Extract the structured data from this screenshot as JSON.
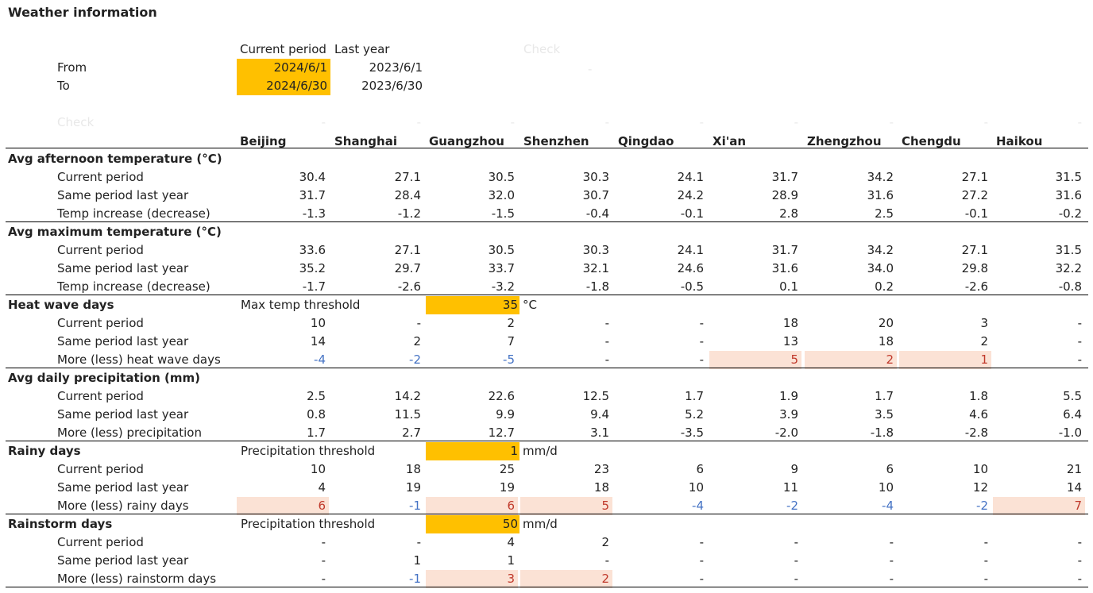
{
  "title": "Weather information",
  "period_header": {
    "current": "Current period",
    "last": "Last year",
    "check": "Check"
  },
  "from_label": "From",
  "to_label": "To",
  "from_current": "2024/6/1",
  "from_last": "2023/6/1",
  "to_current": "2024/6/30",
  "to_last": "2023/6/30",
  "dash": "-",
  "check_label": "Check",
  "cities": [
    "Beijing",
    "Shanghai",
    "Guangzhou",
    "Shenzhen",
    "Qingdao",
    "Xi'an",
    "Zhengzhou",
    "Chengdu",
    "Haikou"
  ],
  "sections": [
    {
      "title": "Avg afternoon temperature (°C)",
      "rows": [
        {
          "label": "Current period",
          "values": [
            "30.4",
            "27.1",
            "30.5",
            "30.3",
            "24.1",
            "31.7",
            "34.2",
            "27.1",
            "31.5"
          ]
        },
        {
          "label": "Same period last year",
          "values": [
            "31.7",
            "28.4",
            "32.0",
            "30.7",
            "24.2",
            "28.9",
            "31.6",
            "27.2",
            "31.6"
          ]
        },
        {
          "label": "Temp increase (decrease)",
          "values": [
            "-1.3",
            "-1.2",
            "-1.5",
            "-0.4",
            "-0.1",
            "2.8",
            "2.5",
            "-0.1",
            "-0.2"
          ]
        }
      ]
    },
    {
      "title": "Avg maximum temperature (°C)",
      "rows": [
        {
          "label": "Current period",
          "values": [
            "33.6",
            "27.1",
            "30.5",
            "30.3",
            "24.1",
            "31.7",
            "34.2",
            "27.1",
            "31.5"
          ]
        },
        {
          "label": "Same period last year",
          "values": [
            "35.2",
            "29.7",
            "33.7",
            "32.1",
            "24.6",
            "31.6",
            "34.0",
            "29.8",
            "32.2"
          ]
        },
        {
          "label": "Temp increase (decrease)",
          "values": [
            "-1.7",
            "-2.6",
            "-3.2",
            "-1.8",
            "-0.5",
            "0.1",
            "0.2",
            "-2.6",
            "-0.8"
          ]
        }
      ]
    },
    {
      "title": "Heat wave days",
      "threshold_label": "Max temp threshold",
      "threshold_value": "35",
      "threshold_unit": "°C",
      "rows": [
        {
          "label": "Current period",
          "values": [
            "10",
            "-",
            "2",
            "-",
            "-",
            "18",
            "20",
            "3",
            "-"
          ]
        },
        {
          "label": "Same period last year",
          "values": [
            "14",
            "2",
            "7",
            "-",
            "-",
            "13",
            "18",
            "2",
            "-"
          ]
        },
        {
          "label": "More (less) heat wave days",
          "values": [
            "-4",
            "-2",
            "-5",
            "-",
            "-",
            "5",
            "2",
            "1",
            "-"
          ]
        }
      ]
    },
    {
      "title": "Avg daily precipitation (mm)",
      "rows": [
        {
          "label": "Current period",
          "values": [
            "2.5",
            "14.2",
            "22.6",
            "12.5",
            "1.7",
            "1.9",
            "1.7",
            "1.8",
            "5.5"
          ]
        },
        {
          "label": "Same period last year",
          "values": [
            "0.8",
            "11.5",
            "9.9",
            "9.4",
            "5.2",
            "3.9",
            "3.5",
            "4.6",
            "6.4"
          ]
        },
        {
          "label": "More (less) precipitation",
          "values": [
            "1.7",
            "2.7",
            "12.7",
            "3.1",
            "-3.5",
            "-2.0",
            "-1.8",
            "-2.8",
            "-1.0"
          ]
        }
      ]
    },
    {
      "title": "Rainy days",
      "threshold_label": "Precipitation threshold",
      "threshold_value": "1",
      "threshold_unit": "mm/d",
      "rows": [
        {
          "label": "Current period",
          "values": [
            "10",
            "18",
            "25",
            "23",
            "6",
            "9",
            "6",
            "10",
            "21"
          ]
        },
        {
          "label": "Same period last year",
          "values": [
            "4",
            "19",
            "19",
            "18",
            "10",
            "11",
            "10",
            "12",
            "14"
          ]
        },
        {
          "label": "More (less) rainy days",
          "values": [
            "6",
            "-1",
            "6",
            "5",
            "-4",
            "-2",
            "-4",
            "-2",
            "7"
          ]
        }
      ]
    },
    {
      "title": "Rainstorm days",
      "threshold_label": "Precipitation threshold",
      "threshold_value": "50",
      "threshold_unit": "mm/d",
      "rows": [
        {
          "label": "Current period",
          "values": [
            "-",
            "-",
            "4",
            "2",
            "-",
            "-",
            "-",
            "-",
            "-"
          ]
        },
        {
          "label": "Same period last year",
          "values": [
            "-",
            "1",
            "1",
            "-",
            "-",
            "-",
            "-",
            "-",
            "-"
          ]
        },
        {
          "label": "More (less) rainstorm days",
          "values": [
            "-",
            "-1",
            "3",
            "2",
            "-",
            "-",
            "-",
            "-",
            "-"
          ]
        }
      ]
    }
  ],
  "colors": {
    "input_fill": "#ffc000",
    "highlight_fill": "#fbe2d5",
    "negative": "#4472c4",
    "positive": "#c0392b"
  }
}
